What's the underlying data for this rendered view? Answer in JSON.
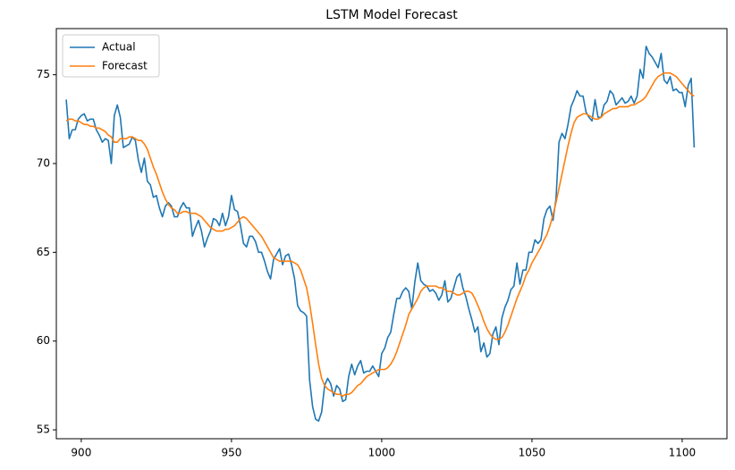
{
  "chart_data": {
    "type": "line",
    "title": "LSTM Model Forecast",
    "x": [
      895,
      896,
      897,
      898,
      899,
      900,
      901,
      902,
      903,
      904,
      905,
      906,
      907,
      908,
      909,
      910,
      911,
      912,
      913,
      914,
      915,
      916,
      917,
      918,
      919,
      920,
      921,
      922,
      923,
      924,
      925,
      926,
      927,
      928,
      929,
      930,
      931,
      932,
      933,
      934,
      935,
      936,
      937,
      938,
      939,
      940,
      941,
      942,
      943,
      944,
      945,
      946,
      947,
      948,
      949,
      950,
      951,
      952,
      953,
      954,
      955,
      956,
      957,
      958,
      959,
      960,
      961,
      962,
      963,
      964,
      965,
      966,
      967,
      968,
      969,
      970,
      971,
      972,
      973,
      974,
      975,
      976,
      977,
      978,
      979,
      980,
      981,
      982,
      983,
      984,
      985,
      986,
      987,
      988,
      989,
      990,
      991,
      992,
      993,
      994,
      995,
      996,
      997,
      998,
      999,
      1000,
      1001,
      1002,
      1003,
      1004,
      1005,
      1006,
      1007,
      1008,
      1009,
      1010,
      1011,
      1012,
      1013,
      1014,
      1015,
      1016,
      1017,
      1018,
      1019,
      1020,
      1021,
      1022,
      1023,
      1024,
      1025,
      1026,
      1027,
      1028,
      1029,
      1030,
      1031,
      1032,
      1033,
      1034,
      1035,
      1036,
      1037,
      1038,
      1039,
      1040,
      1041,
      1042,
      1043,
      1044,
      1045,
      1046,
      1047,
      1048,
      1049,
      1050,
      1051,
      1052,
      1053,
      1054,
      1055,
      1056,
      1057,
      1058,
      1059,
      1060,
      1061,
      1062,
      1063,
      1064,
      1065,
      1066,
      1067,
      1068,
      1069,
      1070,
      1071,
      1072,
      1073,
      1074,
      1075,
      1076,
      1077,
      1078,
      1079,
      1080,
      1081,
      1082,
      1083,
      1084,
      1085,
      1086,
      1087,
      1088,
      1089,
      1090,
      1091,
      1092,
      1093,
      1094,
      1095,
      1096,
      1097,
      1098,
      1099,
      1100,
      1101,
      1102,
      1103,
      1104
    ],
    "series": [
      {
        "name": "Actual",
        "color": "#1f77b4",
        "values": [
          73.6,
          71.4,
          71.9,
          71.9,
          72.5,
          72.7,
          72.8,
          72.4,
          72.5,
          72.5,
          71.9,
          71.6,
          71.2,
          71.4,
          71.3,
          70.0,
          72.7,
          73.3,
          72.6,
          70.9,
          71.0,
          71.1,
          71.5,
          71.3,
          70.2,
          69.5,
          70.3,
          69.0,
          68.8,
          68.1,
          68.2,
          67.5,
          67.0,
          67.6,
          67.8,
          67.6,
          67.0,
          67.0,
          67.5,
          67.8,
          67.5,
          67.5,
          65.9,
          66.4,
          66.8,
          66.2,
          65.3,
          65.8,
          66.2,
          66.9,
          66.8,
          66.5,
          67.2,
          66.5,
          67.0,
          68.2,
          67.4,
          67.3,
          66.5,
          65.5,
          65.3,
          65.9,
          65.9,
          65.6,
          65.0,
          65.0,
          64.5,
          63.9,
          63.5,
          64.6,
          64.9,
          65.2,
          64.3,
          64.8,
          64.9,
          64.3,
          63.5,
          62.0,
          61.7,
          61.6,
          61.4,
          57.8,
          56.3,
          55.6,
          55.5,
          56.0,
          57.5,
          57.9,
          57.6,
          56.9,
          57.5,
          57.3,
          56.6,
          56.7,
          58.0,
          58.7,
          58.1,
          58.6,
          58.9,
          58.2,
          58.3,
          58.3,
          58.6,
          58.3,
          58.0,
          59.3,
          59.6,
          60.2,
          60.5,
          61.5,
          62.4,
          62.4,
          62.8,
          63.0,
          62.8,
          61.8,
          63.3,
          64.4,
          63.4,
          63.2,
          63.1,
          62.8,
          62.9,
          62.7,
          62.3,
          62.6,
          63.4,
          62.2,
          62.4,
          63.0,
          63.6,
          63.8,
          63.0,
          62.5,
          61.8,
          61.2,
          60.5,
          60.8,
          59.4,
          59.9,
          59.1,
          59.3,
          60.4,
          60.8,
          59.8,
          61.3,
          61.9,
          62.3,
          62.9,
          63.1,
          64.4,
          63.2,
          64.0,
          64.0,
          65.0,
          65.0,
          65.7,
          65.5,
          65.7,
          66.9,
          67.4,
          67.6,
          66.8,
          68.0,
          71.2,
          71.7,
          71.4,
          72.2,
          73.2,
          73.6,
          74.1,
          73.8,
          73.8,
          72.9,
          72.6,
          72.4,
          73.6,
          72.6,
          72.6,
          73.3,
          73.5,
          74.1,
          73.9,
          73.3,
          73.5,
          73.7,
          73.4,
          73.5,
          73.8,
          73.4,
          73.8,
          75.3,
          74.8,
          76.6,
          76.2,
          76.0,
          75.7,
          75.4,
          76.2,
          74.7,
          74.5,
          74.9,
          74.1,
          74.2,
          74.0,
          74.0,
          73.2,
          74.4,
          74.8,
          70.9
        ]
      },
      {
        "name": "Forecast",
        "color": "#ff7f0e",
        "values": [
          72.4,
          72.5,
          72.5,
          72.4,
          72.4,
          72.3,
          72.2,
          72.2,
          72.1,
          72.1,
          72.0,
          72.0,
          71.9,
          71.8,
          71.6,
          71.5,
          71.2,
          71.2,
          71.4,
          71.4,
          71.4,
          71.5,
          71.5,
          71.4,
          71.3,
          71.3,
          71.1,
          70.8,
          70.3,
          69.8,
          69.4,
          68.9,
          68.4,
          68.0,
          67.7,
          67.5,
          67.4,
          67.2,
          67.2,
          67.3,
          67.3,
          67.2,
          67.2,
          67.2,
          67.1,
          67.0,
          66.8,
          66.6,
          66.4,
          66.3,
          66.2,
          66.2,
          66.2,
          66.3,
          66.3,
          66.4,
          66.5,
          66.7,
          66.9,
          67.0,
          66.9,
          66.7,
          66.5,
          66.3,
          66.1,
          65.9,
          65.6,
          65.3,
          65.0,
          64.7,
          64.6,
          64.5,
          64.5,
          64.5,
          64.5,
          64.5,
          64.4,
          64.3,
          64.0,
          63.5,
          63.0,
          62.1,
          61.0,
          59.8,
          58.7,
          57.9,
          57.5,
          57.3,
          57.2,
          57.1,
          57.0,
          57.0,
          56.9,
          57.0,
          57.0,
          57.1,
          57.3,
          57.5,
          57.6,
          57.8,
          58.0,
          58.1,
          58.2,
          58.3,
          58.4,
          58.4,
          58.4,
          58.5,
          58.7,
          59.0,
          59.4,
          59.9,
          60.4,
          60.9,
          61.5,
          61.8,
          62.1,
          62.4,
          62.8,
          63.0,
          63.1,
          63.1,
          63.1,
          63.1,
          63.0,
          63.0,
          62.9,
          62.8,
          62.8,
          62.7,
          62.6,
          62.6,
          62.7,
          62.8,
          62.8,
          62.7,
          62.4,
          62.0,
          61.6,
          61.1,
          60.7,
          60.4,
          60.2,
          60.1,
          60.1,
          60.2,
          60.5,
          60.9,
          61.4,
          61.9,
          62.4,
          62.8,
          63.2,
          63.7,
          64.0,
          64.4,
          64.7,
          65.0,
          65.3,
          65.7,
          66.0,
          66.5,
          67.1,
          67.8,
          68.6,
          69.4,
          70.2,
          71.0,
          71.7,
          72.3,
          72.6,
          72.7,
          72.8,
          72.8,
          72.7,
          72.6,
          72.5,
          72.5,
          72.6,
          72.8,
          72.9,
          73.0,
          73.1,
          73.1,
          73.2,
          73.2,
          73.2,
          73.2,
          73.3,
          73.3,
          73.4,
          73.5,
          73.6,
          73.8,
          74.1,
          74.4,
          74.7,
          74.9,
          75.0,
          75.1,
          75.1,
          75.1,
          75.0,
          74.9,
          74.7,
          74.5,
          74.3,
          74.1,
          73.9,
          73.8
        ]
      }
    ],
    "xlim": [
      891.7,
      1114.9
    ],
    "xticks": [
      900,
      950,
      1000,
      1050,
      1100
    ],
    "ylim": [
      54.5,
      77.6
    ],
    "yticks": [
      55,
      60,
      65,
      70,
      75
    ],
    "legend": "upper left",
    "grid": false
  }
}
